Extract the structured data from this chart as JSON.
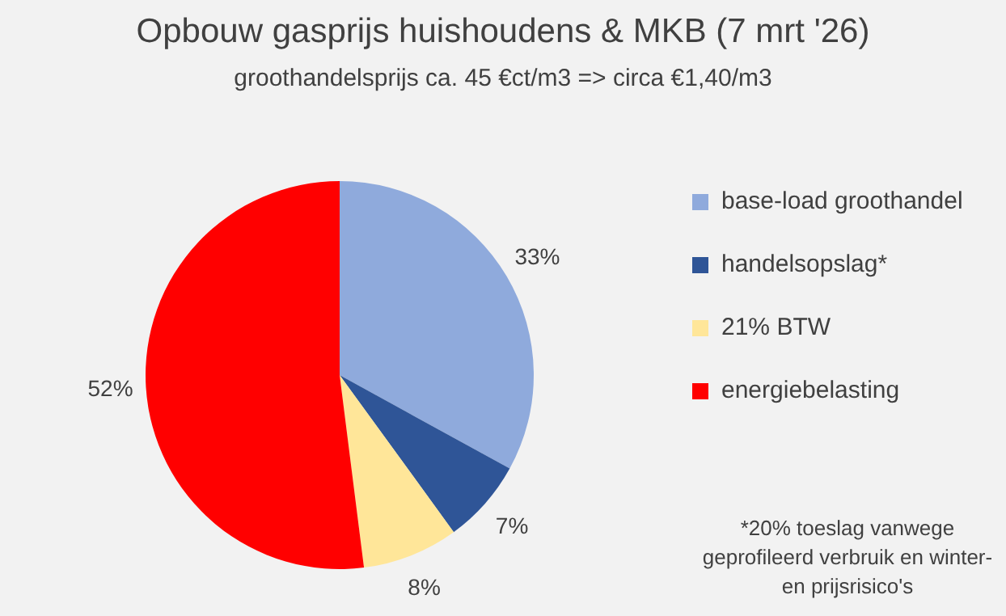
{
  "chart_data": {
    "type": "pie",
    "title": "Opbouw gasprijs huishoudens & MKB (7 mrt '26)",
    "subtitle": "groothandelsprijs ca. 45 €ct/m3 => circa €1,40/m3",
    "categories": [
      "base-load groothandel",
      "handelsopslag*",
      "21% BTW",
      "energiebelasting"
    ],
    "values": [
      33,
      7,
      8,
      52
    ],
    "value_labels": [
      "33%",
      "7%",
      "8%",
      "52%"
    ],
    "colors": [
      "#8faadc",
      "#2f5597",
      "#ffe699",
      "#ff0000"
    ],
    "legend": "right",
    "annotations": [
      "*20% toeslag vanwege geprofileerd verbruik en winter- en prijsrisico's"
    ]
  }
}
